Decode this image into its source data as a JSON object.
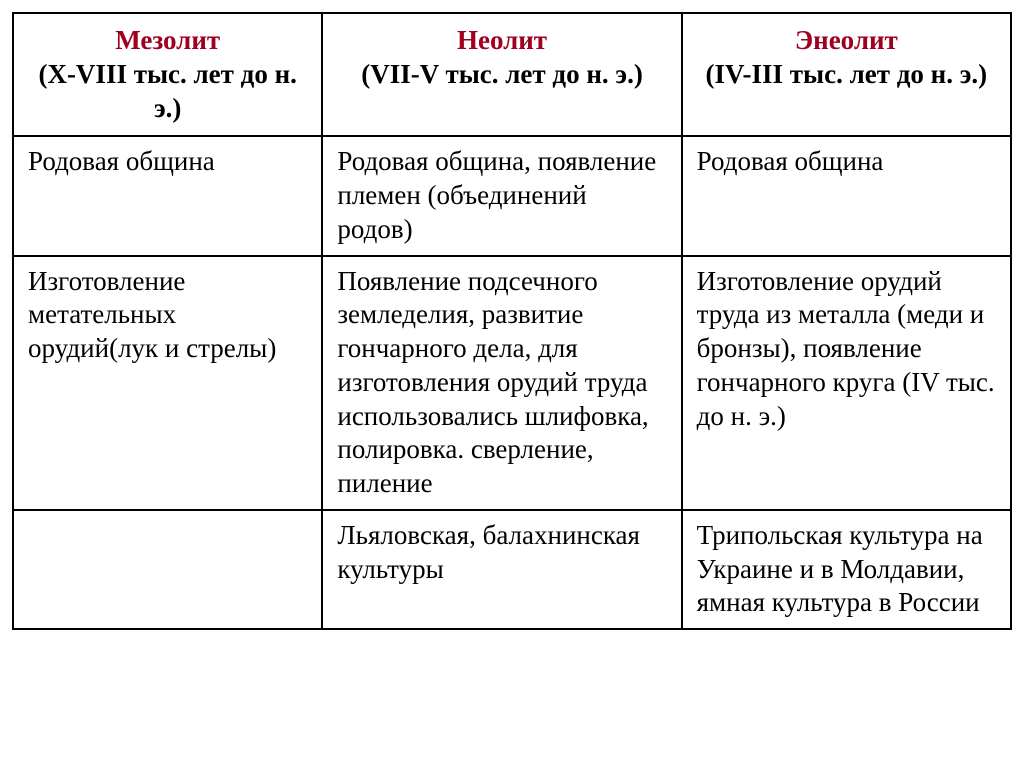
{
  "table": {
    "columns": [
      {
        "title": "Мезолит",
        "subtitle": "(X-VIII тыс. лет до н. э.)",
        "width": "31%"
      },
      {
        "title": "Неолит",
        "subtitle": "(VII-V тыс. лет до н. э.)",
        "width": "36%"
      },
      {
        "title": "Энеолит",
        "subtitle": "(IV-III тыс. лет до н. э.)",
        "width": "33%"
      }
    ],
    "rows": [
      [
        "Родовая община",
        "Родовая община, появление племен (объединений родов)",
        "Родовая община"
      ],
      [
        "Изготовление метательных орудий(лук и стрелы)",
        "Появление подсечного земледелия, развитие гончарного дела, для изготовления орудий труда использовались шлифовка, полировка. сверление, пиление",
        "Изготовление орудий труда из металла (меди и бронзы), появление гончарного круга (IV тыс. до н. э.)"
      ],
      [
        "",
        "Льяловская, балахнинская культуры",
        "Трипольская культура на Украине и в Молдавии, ямная культура в России"
      ]
    ],
    "header_title_color": "#a00020",
    "header_subtitle_color": "#000000",
    "border_color": "#000000",
    "background_color": "#ffffff",
    "font_family": "Times New Roman",
    "cell_fontsize": 27,
    "border_width": 2
  }
}
